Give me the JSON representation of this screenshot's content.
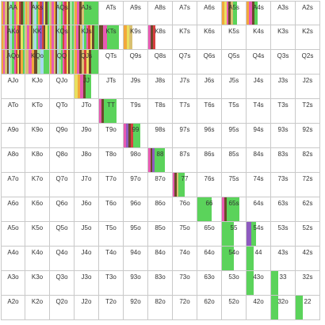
{
  "ranks": [
    "A",
    "K",
    "Q",
    "J",
    "T",
    "9",
    "8",
    "7",
    "6",
    "5",
    "4",
    "3",
    "2"
  ],
  "colors": {
    "green": "#5bd35b",
    "pink": "#e85ab2",
    "orange": "#f2a83c",
    "brown": "#6b4a2a",
    "lightgreen": "#a6e6a0",
    "lightblue": "#a8d8f0",
    "khaki": "#d8c070",
    "red": "#d84040",
    "purple": "#8e5bc0",
    "yellow": "#e8e060",
    "grey": "#9a9a9a"
  },
  "cells": {
    "AA": {
      "fill": 1.0,
      "palette": [
        "orange",
        "pink",
        "khaki",
        "brown",
        "lightgreen",
        "lightblue",
        "green",
        "pink",
        "orange",
        "yellow",
        "red",
        "brown",
        "green"
      ]
    },
    "AKs": {
      "fill": 1.0,
      "palette": [
        "orange",
        "khaki",
        "pink",
        "brown",
        "lightgreen",
        "lightblue",
        "green",
        "orange",
        "red",
        "purple",
        "yellow",
        "brown",
        "green"
      ]
    },
    "AQs": {
      "fill": 1.0,
      "palette": [
        "khaki",
        "pink",
        "orange",
        "brown",
        "lightblue",
        "lightgreen",
        "green",
        "pink",
        "red",
        "yellow",
        "brown",
        "lightgreen",
        "green"
      ]
    },
    "AJs": {
      "fill": 1.0,
      "palette": [
        "orange",
        "pink",
        "brown",
        "khaki",
        "green",
        "green",
        "green",
        "green",
        "green",
        "green"
      ]
    },
    "A5s": {
      "fill": 0.65,
      "palette": [
        "orange",
        "yellow",
        "pink",
        "brown",
        "khaki",
        "green",
        "green"
      ]
    },
    "A4s": {
      "fill": 0.45,
      "palette": [
        "orange",
        "pink",
        "brown",
        "green"
      ]
    },
    "AKo": {
      "fill": 1.0,
      "palette": [
        "orange",
        "khaki",
        "pink",
        "brown",
        "lightgreen",
        "lightblue",
        "green",
        "pink",
        "orange",
        "red",
        "brown",
        "yellow",
        "green"
      ]
    },
    "KK": {
      "fill": 1.0,
      "palette": [
        "khaki",
        "pink",
        "orange",
        "brown",
        "lightgreen",
        "lightblue",
        "green",
        "pink",
        "purple",
        "red",
        "brown",
        "yellow",
        "green"
      ]
    },
    "KQs": {
      "fill": 1.0,
      "palette": [
        "orange",
        "pink",
        "khaki",
        "brown",
        "lightblue",
        "lightgreen",
        "green",
        "red",
        "pink",
        "yellow",
        "brown",
        "lightgreen",
        "green"
      ]
    },
    "KJs": {
      "fill": 1.0,
      "palette": [
        "orange",
        "pink",
        "brown",
        "khaki",
        "lightblue",
        "green",
        "pink",
        "red",
        "yellow",
        "brown",
        "green",
        "green"
      ]
    },
    "KTs": {
      "fill": 0.85,
      "palette": [
        "brown",
        "pink",
        "green",
        "green",
        "green"
      ]
    },
    "K9s": {
      "fill": 0.35,
      "palette": [
        "orange",
        "yellow",
        "khaki"
      ]
    },
    "K8s": {
      "fill": 0.3,
      "palette": [
        "pink",
        "brown",
        "red"
      ]
    },
    "AQo": {
      "fill": 1.0,
      "palette": [
        "orange",
        "pink",
        "khaki",
        "brown",
        "lightblue",
        "lightgreen",
        "green",
        "pink",
        "red",
        "yellow",
        "brown",
        "orange",
        "green"
      ]
    },
    "KQo": {
      "fill": 1.0,
      "palette": [
        "khaki",
        "pink",
        "orange",
        "brown",
        "lightgreen",
        "lightblue",
        "green",
        "green"
      ]
    },
    "QQ": {
      "fill": 1.0,
      "palette": [
        "orange",
        "pink",
        "khaki",
        "brown",
        "lightblue",
        "lightgreen",
        "green",
        "pink",
        "red",
        "yellow",
        "brown",
        "lightgreen",
        "green"
      ]
    },
    "QJs": {
      "fill": 1.0,
      "palette": [
        "orange",
        "pink",
        "brown",
        "khaki",
        "red",
        "yellow",
        "brown",
        "green",
        "green",
        "green"
      ]
    },
    "JJ": {
      "fill": 0.7,
      "palette": [
        "yellow",
        "orange",
        "pink",
        "brown",
        "green",
        "green"
      ]
    },
    "TT": {
      "fill": 0.75,
      "palette": [
        "pink",
        "brown",
        "green",
        "green",
        "green",
        "green",
        "green"
      ]
    },
    "99": {
      "fill": 0.7,
      "palette": [
        "pink",
        "purple",
        "brown",
        "red",
        "green",
        "green",
        "green"
      ]
    },
    "88": {
      "fill": 0.7,
      "palette": [
        "pink",
        "brown",
        "purple",
        "green",
        "green",
        "green",
        "green",
        "green"
      ]
    },
    "77": {
      "fill": 0.5,
      "palette": [
        "pink",
        "brown",
        "khaki",
        "green",
        "green",
        "green"
      ]
    },
    "66": {
      "fill": 0.6,
      "palette": [
        "green",
        "green",
        "green",
        "green",
        "green",
        "green",
        "green",
        "green"
      ]
    },
    "65s": {
      "fill": 0.75,
      "palette": [
        "pink",
        "brown",
        "green",
        "green",
        "green",
        "green",
        "green"
      ]
    },
    "55": {
      "fill": 0.5,
      "palette": [
        "green"
      ]
    },
    "54s": {
      "fill": 0.4,
      "palette": [
        "purple",
        "green"
      ]
    },
    "54o": {
      "fill": 0.5,
      "palette": [
        "green"
      ]
    },
    "44": {
      "fill": 0.3,
      "palette": [
        "green"
      ]
    },
    "43o": {
      "fill": 0.3,
      "palette": [
        "green"
      ]
    },
    "33": {
      "fill": 0.3,
      "palette": [
        "green"
      ]
    },
    "32o": {
      "fill": 0.3,
      "palette": [
        "green"
      ]
    },
    "22": {
      "fill": 0.3,
      "palette": [
        "green"
      ]
    }
  }
}
